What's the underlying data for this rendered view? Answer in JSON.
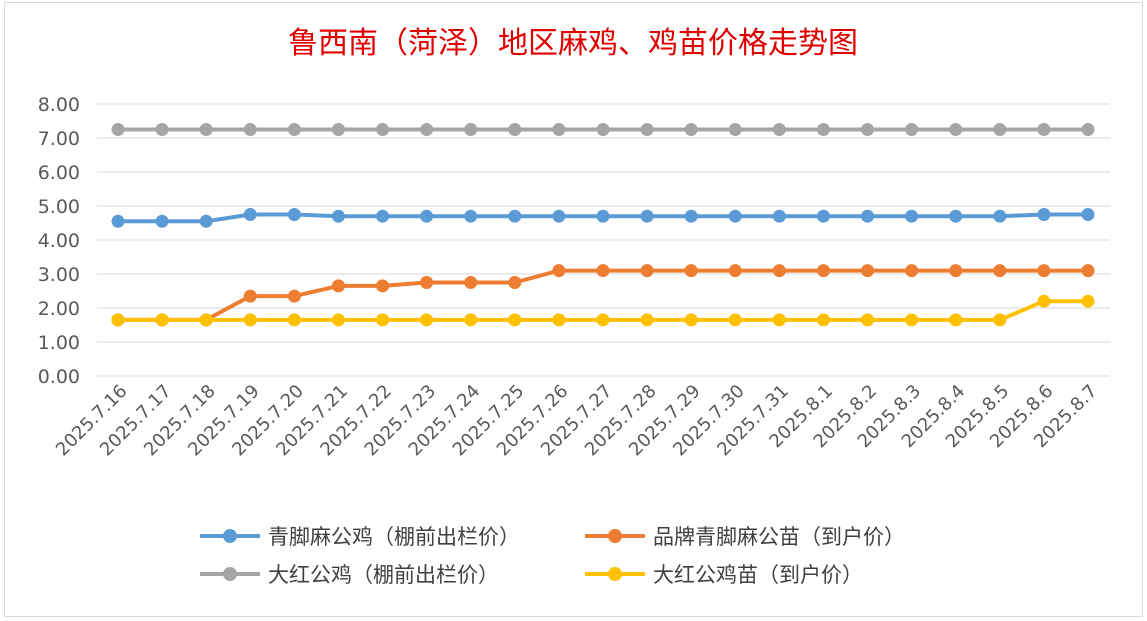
{
  "chart_data": {
    "type": "line",
    "title": "鲁西南（菏泽）地区麻鸡、鸡苗价格走势图",
    "xlabel": "",
    "ylabel": "",
    "ylim": [
      0,
      8
    ],
    "yticks": [
      "0.00",
      "1.00",
      "2.00",
      "3.00",
      "4.00",
      "5.00",
      "6.00",
      "7.00",
      "8.00"
    ],
    "grid": true,
    "legend_position": "bottom",
    "categories": [
      "2025.7.16",
      "2025.7.17",
      "2025.7.18",
      "2025.7.19",
      "2025.7.20",
      "2025.7.21",
      "2025.7.22",
      "2025.7.23",
      "2025.7.24",
      "2025.7.25",
      "2025.7.26",
      "2025.7.27",
      "2025.7.28",
      "2025.7.29",
      "2025.7.30",
      "2025.7.31",
      "2025.8.1",
      "2025.8.2",
      "2025.8.3",
      "2025.8.4",
      "2025.8.5",
      "2025.8.6",
      "2025.8.7"
    ],
    "series": [
      {
        "name": "青脚麻公鸡（棚前出栏价）",
        "color": "#5b9bd5",
        "values": [
          4.55,
          4.55,
          4.55,
          4.75,
          4.75,
          4.7,
          4.7,
          4.7,
          4.7,
          4.7,
          4.7,
          4.7,
          4.7,
          4.7,
          4.7,
          4.7,
          4.7,
          4.7,
          4.7,
          4.7,
          4.7,
          4.75,
          4.75
        ]
      },
      {
        "name": "品牌青脚麻公苗（到户价）",
        "color": "#ed7d31",
        "values": [
          1.65,
          1.65,
          1.65,
          2.35,
          2.35,
          2.65,
          2.65,
          2.75,
          2.75,
          2.75,
          3.1,
          3.1,
          3.1,
          3.1,
          3.1,
          3.1,
          3.1,
          3.1,
          3.1,
          3.1,
          3.1,
          3.1,
          3.1
        ]
      },
      {
        "name": "大红公鸡（棚前出栏价）",
        "color": "#a5a5a5",
        "values": [
          7.25,
          7.25,
          7.25,
          7.25,
          7.25,
          7.25,
          7.25,
          7.25,
          7.25,
          7.25,
          7.25,
          7.25,
          7.25,
          7.25,
          7.25,
          7.25,
          7.25,
          7.25,
          7.25,
          7.25,
          7.25,
          7.25,
          7.25
        ]
      },
      {
        "name": "大红公鸡苗（到户价）",
        "color": "#ffc000",
        "values": [
          1.65,
          1.65,
          1.65,
          1.65,
          1.65,
          1.65,
          1.65,
          1.65,
          1.65,
          1.65,
          1.65,
          1.65,
          1.65,
          1.65,
          1.65,
          1.65,
          1.65,
          1.65,
          1.65,
          1.65,
          1.65,
          2.2,
          2.2
        ]
      }
    ]
  },
  "colors": {
    "title": "#e00000",
    "axis_text": "#595959",
    "grid": "#d9d9d9",
    "legend_text": "#404040"
  }
}
